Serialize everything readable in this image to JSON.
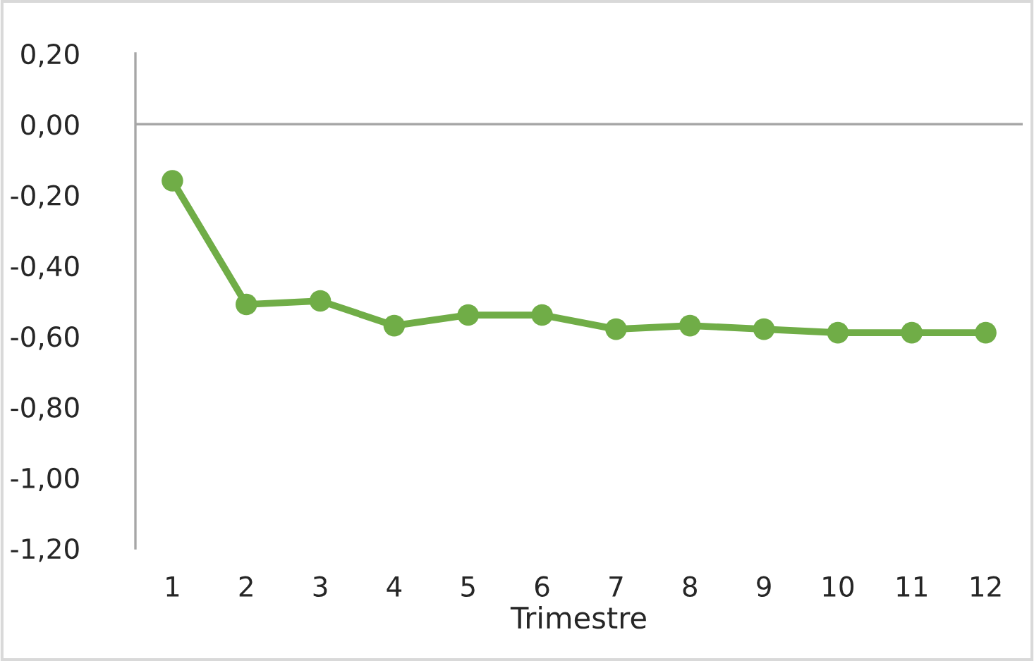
{
  "chart_data": {
    "type": "line",
    "xlabel": "Trimestre",
    "categories": [
      "1",
      "2",
      "3",
      "4",
      "5",
      "6",
      "7",
      "8",
      "9",
      "10",
      "11",
      "12"
    ],
    "series": [
      {
        "color": "#70ad47",
        "values": [
          -0.16,
          -0.51,
          -0.5,
          -0.57,
          -0.54,
          -0.54,
          -0.58,
          -0.57,
          -0.58,
          -0.59,
          -0.59,
          -0.59
        ]
      }
    ],
    "ylim": [
      -1.2,
      0.2
    ],
    "yticks": [
      {
        "value": -1.2,
        "label": "-1,20"
      },
      {
        "value": -1.0,
        "label": "-1,00"
      },
      {
        "value": -0.8,
        "label": "-0,80"
      },
      {
        "value": -0.6,
        "label": "-0,60"
      },
      {
        "value": -0.4,
        "label": "-0,40"
      },
      {
        "value": -0.2,
        "label": "-0,20"
      },
      {
        "value": 0.0,
        "label": "0,00"
      },
      {
        "value": 0.2,
        "label": "0,20"
      }
    ],
    "ref_lines": [
      {
        "axis": "y",
        "value": 0,
        "color": "#a6a6a6"
      }
    ],
    "marker": "circle",
    "line_style": "solid",
    "grid": false,
    "legend": false
  }
}
